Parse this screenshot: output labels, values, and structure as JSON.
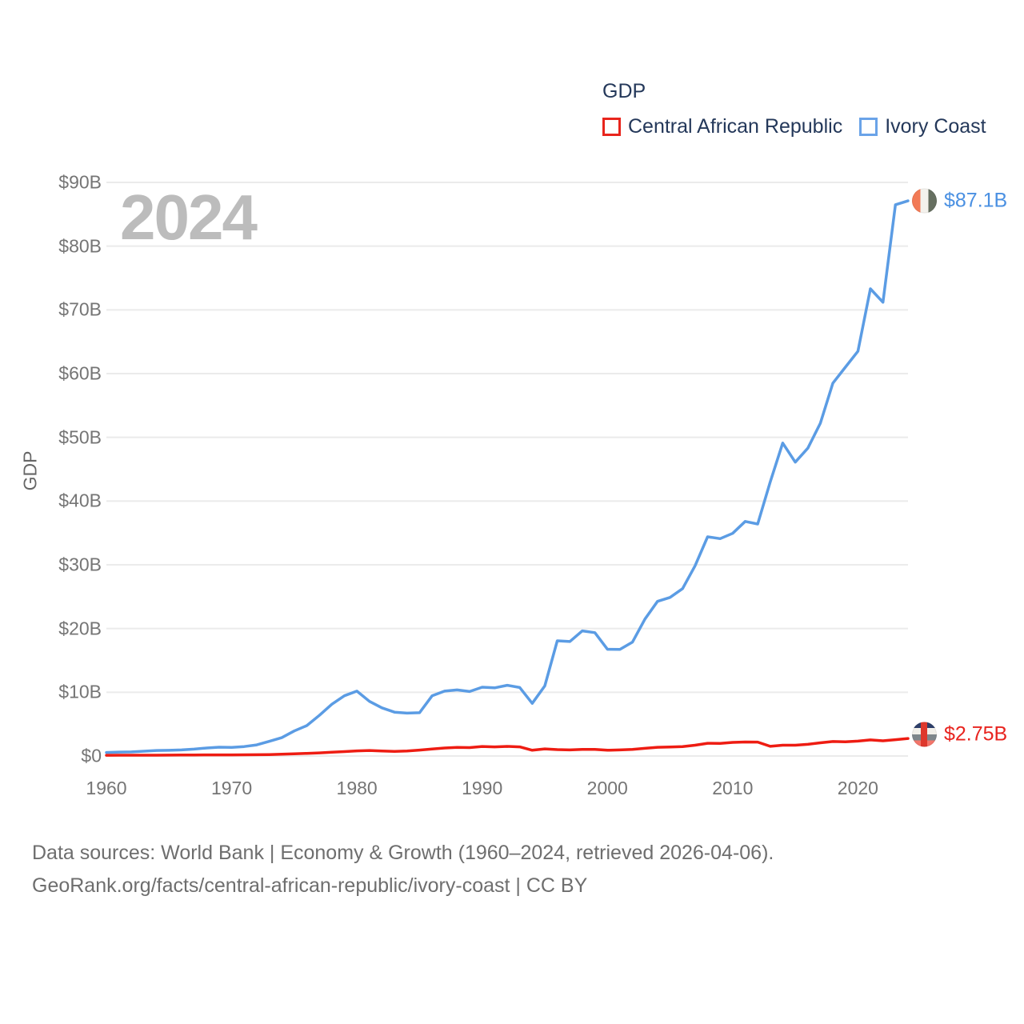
{
  "watermark": {
    "year": "2024"
  },
  "legend": {
    "title": "GDP",
    "items": [
      {
        "label": "Central African Republic",
        "color": "#e8251c"
      },
      {
        "label": "Ivory Coast",
        "color": "#6aa3e8"
      }
    ]
  },
  "y_axis": {
    "title": "GDP"
  },
  "end_labels": {
    "ivory_coast": {
      "value": "$87.1B",
      "flag": "ivory-coast-flag",
      "color": "#4a90e2"
    },
    "central_african_republic": {
      "value": "$2.75B",
      "flag": "central-african-republic-flag",
      "color": "#e8241f"
    }
  },
  "footer": {
    "line1": "Data sources: World Bank | Economy & Growth (1960–2024, retrieved 2026-04-06).",
    "line2": "GeoRank.org/facts/central-african-republic/ivory-coast | CC BY"
  },
  "chart_data": {
    "type": "line",
    "title": "GDP",
    "xlabel": "",
    "ylabel": "GDP",
    "x_start": 1960,
    "x_end": 2024,
    "ylim": [
      0,
      90
    ],
    "grid": true,
    "legend_position": "top-right",
    "x_tick_labels": [
      "1960",
      "1970",
      "1980",
      "1990",
      "2000",
      "2010",
      "2020"
    ],
    "x_tick_years": [
      1960,
      1970,
      1980,
      1990,
      2000,
      2010,
      2020
    ],
    "y_tick_labels": [
      "$0",
      "$10B",
      "$20B",
      "$30B",
      "$40B",
      "$50B",
      "$60B",
      "$70B",
      "$80B",
      "$90B"
    ],
    "y_tick_values": [
      0,
      10,
      20,
      30,
      40,
      50,
      60,
      70,
      80,
      90
    ],
    "units": "billions of current US dollars",
    "series": [
      {
        "name": "Ivory Coast",
        "color": "#5b9ce4",
        "end_label": "$87.1B",
        "end_value": 87.1,
        "values": [
          0.55,
          0.62,
          0.64,
          0.75,
          0.86,
          0.89,
          0.95,
          1.08,
          1.26,
          1.38,
          1.36,
          1.48,
          1.74,
          2.3,
          2.87,
          3.93,
          4.77,
          6.38,
          8.12,
          9.45,
          10.18,
          8.57,
          7.56,
          6.88,
          6.73,
          6.79,
          9.44,
          10.18,
          10.37,
          10.12,
          10.8,
          10.7,
          11.1,
          10.75,
          8.26,
          11.0,
          18.08,
          17.96,
          19.63,
          19.36,
          16.75,
          16.72,
          17.88,
          21.49,
          24.26,
          24.88,
          26.26,
          29.84,
          34.39,
          34.1,
          34.93,
          36.8,
          36.4,
          43.0,
          49.1,
          46.1,
          48.3,
          52.2,
          58.5,
          61.0,
          63.5,
          73.3,
          71.2,
          86.5,
          87.1
        ]
      },
      {
        "name": "Central African Republic",
        "color": "#ee1c12",
        "end_label": "$2.75B",
        "end_value": 2.75,
        "values": [
          0.11,
          0.12,
          0.12,
          0.13,
          0.13,
          0.14,
          0.15,
          0.16,
          0.18,
          0.18,
          0.18,
          0.19,
          0.2,
          0.23,
          0.28,
          0.34,
          0.41,
          0.49,
          0.6,
          0.69,
          0.8,
          0.86,
          0.78,
          0.72,
          0.78,
          0.93,
          1.11,
          1.25,
          1.35,
          1.32,
          1.49,
          1.43,
          1.5,
          1.43,
          0.91,
          1.12,
          1.0,
          0.95,
          1.04,
          1.04,
          0.91,
          0.95,
          1.04,
          1.21,
          1.37,
          1.41,
          1.48,
          1.7,
          1.99,
          1.98,
          2.14,
          2.2,
          2.18,
          1.52,
          1.7,
          1.7,
          1.83,
          2.07,
          2.27,
          2.22,
          2.33,
          2.52,
          2.38,
          2.56,
          2.75
        ]
      }
    ]
  }
}
